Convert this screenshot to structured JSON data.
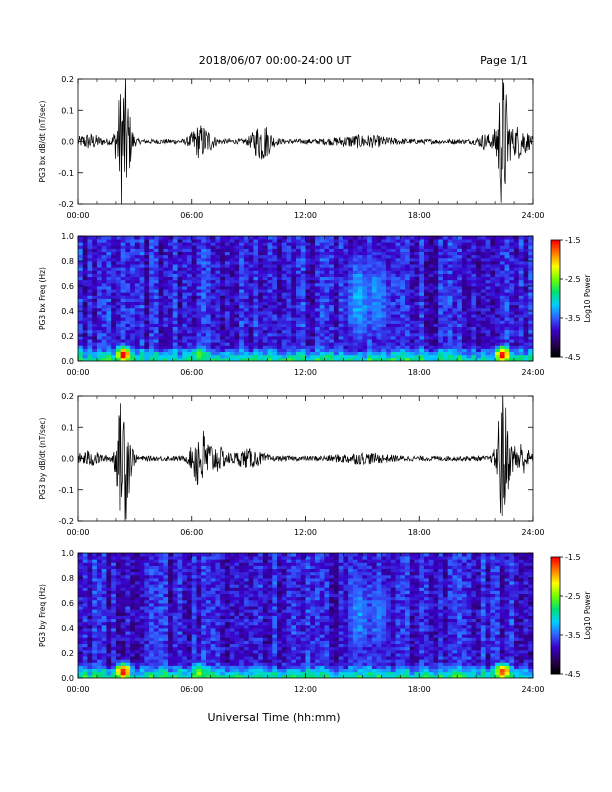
{
  "header": {
    "title": "2018/06/07  00:00-24:00 UT",
    "page": "Page 1/1"
  },
  "footer": {
    "xlabel": "Universal Time (hh:mm)"
  },
  "colors": {
    "trace": "#000000",
    "colormap": [
      "#000000",
      "#2a0058",
      "#3a00c8",
      "#3060ff",
      "#00d0ff",
      "#00e070",
      "#70ff00",
      "#ffff00",
      "#ff8000",
      "#ff0000"
    ]
  },
  "chart_data": [
    {
      "type": "line",
      "ylabel": "PG3 bx dB/dt (nT/sec)",
      "xlim": [
        0,
        24
      ],
      "ylim": [
        -0.2,
        0.2
      ],
      "x_ticks": [
        "00:00",
        "06:00",
        "12:00",
        "18:00",
        "24:00"
      ],
      "y_ticks": [
        "0.2",
        "0.1",
        "0.0",
        "-0.1",
        "-0.2"
      ],
      "baseline": 0.0,
      "bursts": [
        {
          "t": 0.6,
          "amp": 0.02,
          "width": 0.6
        },
        {
          "t": 2.4,
          "amp": 0.22,
          "width": 0.35
        },
        {
          "t": 6.3,
          "amp": 0.04,
          "width": 0.4
        },
        {
          "t": 6.8,
          "amp": 0.03,
          "width": 0.4
        },
        {
          "t": 9.7,
          "amp": 0.06,
          "width": 0.5
        },
        {
          "t": 15.0,
          "amp": 0.015,
          "width": 1.5
        },
        {
          "t": 21.5,
          "amp": 0.02,
          "width": 0.4
        },
        {
          "t": 22.4,
          "amp": 0.22,
          "width": 0.3
        },
        {
          "t": 23.3,
          "amp": 0.05,
          "width": 0.5
        }
      ]
    },
    {
      "type": "heatmap",
      "ylabel": "PG3 bx Freq (Hz)",
      "xlim": [
        0,
        24
      ],
      "ylim": [
        0.0,
        1.0
      ],
      "x_ticks": [
        "00:00",
        "06:00",
        "12:00",
        "18:00",
        "24:00"
      ],
      "y_ticks": [
        "1.0",
        "0.8",
        "0.6",
        "0.4",
        "0.2",
        "0.0"
      ],
      "colorbar": {
        "label": "Log10 Power",
        "ticks": [
          "-1.5",
          "-2.5",
          "-3.5",
          "-4.5"
        ],
        "range": [
          -4.5,
          -1.5
        ]
      },
      "hot_spots": [
        {
          "t": 2.4,
          "f": 0.05,
          "power": -1.6
        },
        {
          "t": 6.4,
          "f": 0.05,
          "power": -2.6
        },
        {
          "t": 14.8,
          "f": 0.5,
          "power": -3.4
        },
        {
          "t": 15.8,
          "f": 0.5,
          "power": -3.5
        },
        {
          "t": 22.4,
          "f": 0.05,
          "power": -1.7
        }
      ]
    },
    {
      "type": "line",
      "ylabel": "PG3 by dB/dt (nT/sec)",
      "xlim": [
        0,
        24
      ],
      "ylim": [
        -0.2,
        0.2
      ],
      "x_ticks": [
        "00:00",
        "06:00",
        "12:00",
        "18:00",
        "24:00"
      ],
      "y_ticks": [
        "0.2",
        "0.1",
        "0.0",
        "-0.1",
        "-0.2"
      ],
      "baseline": 0.0,
      "bursts": [
        {
          "t": 0.6,
          "amp": 0.02,
          "width": 0.6
        },
        {
          "t": 2.4,
          "amp": 0.22,
          "width": 0.35
        },
        {
          "t": 6.4,
          "amp": 0.1,
          "width": 0.4
        },
        {
          "t": 7.2,
          "amp": 0.04,
          "width": 0.6
        },
        {
          "t": 9.0,
          "amp": 0.025,
          "width": 0.8
        },
        {
          "t": 15.0,
          "amp": 0.012,
          "width": 1.5
        },
        {
          "t": 22.4,
          "amp": 0.22,
          "width": 0.3
        },
        {
          "t": 23.3,
          "amp": 0.05,
          "width": 0.5
        }
      ]
    },
    {
      "type": "heatmap",
      "ylabel": "PG3 by Freq (Hz)",
      "xlim": [
        0,
        24
      ],
      "ylim": [
        0.0,
        1.0
      ],
      "x_ticks": [
        "00:00",
        "06:00",
        "12:00",
        "18:00",
        "24:00"
      ],
      "y_ticks": [
        "1.0",
        "0.8",
        "0.6",
        "0.4",
        "0.2",
        "0.0"
      ],
      "colorbar": {
        "label": "Log10 Power",
        "ticks": [
          "-1.5",
          "-2.5",
          "-3.5",
          "-4.5"
        ],
        "range": [
          -4.5,
          -1.5
        ]
      },
      "hot_spots": [
        {
          "t": 2.4,
          "f": 0.05,
          "power": -1.6
        },
        {
          "t": 6.4,
          "f": 0.05,
          "power": -2.6
        },
        {
          "t": 14.8,
          "f": 0.5,
          "power": -3.5
        },
        {
          "t": 15.8,
          "f": 0.5,
          "power": -3.6
        },
        {
          "t": 22.4,
          "f": 0.05,
          "power": -1.7
        }
      ]
    }
  ]
}
